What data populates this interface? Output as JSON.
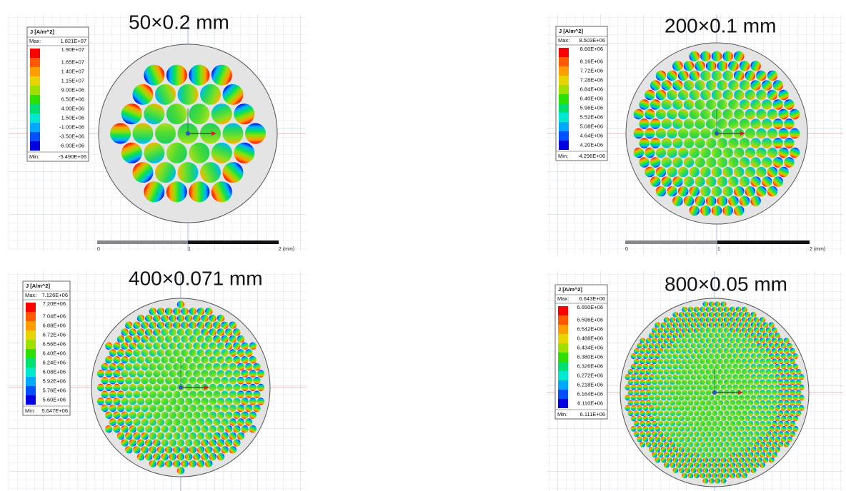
{
  "panels": [
    {
      "title": "50×0.2 mm",
      "legend": {
        "label": "J [A/m^2]",
        "max_label": "Max:",
        "max": "1.821E+07",
        "levels": [
          "1.90E+07",
          "1.65E+07",
          "1.40E+07",
          "1.15E+07",
          "9.00E+06",
          "6.50E+06",
          "4.00E+06",
          "1.50E+06",
          "-1.00E+06",
          "-3.50E+06",
          "-6.00E+06"
        ],
        "min_label": "Min:",
        "min": "-5.490E+06"
      },
      "scale_bar": [
        "0",
        "1",
        "2 (mm)"
      ]
    },
    {
      "title": "200×0.1 mm",
      "legend": {
        "label": "J [A/m^2]",
        "max_label": "Max:",
        "max": "8.503E+06",
        "levels": [
          "8.60E+06",
          "8.16E+06",
          "7.72E+06",
          "7.28E+06",
          "6.84E+06",
          "6.40E+06",
          "5.96E+06",
          "5.52E+06",
          "5.08E+06",
          "4.64E+06",
          "4.20E+06"
        ],
        "min_label": "Min:",
        "min": "4.296E+06"
      },
      "scale_bar": [
        "0",
        "1",
        "2 (mm)"
      ]
    },
    {
      "title": "400×0.071 mm",
      "legend": {
        "label": "J [A/m^2]",
        "max_label": "Max:",
        "max": "7.126E+06",
        "levels": [
          "7.20E+06",
          "7.04E+06",
          "6.88E+06",
          "6.72E+06",
          "6.56E+06",
          "6.40E+06",
          "6.24E+06",
          "6.08E+06",
          "5.92E+06",
          "5.76E+06",
          "5.60E+06"
        ],
        "min_label": "Min:",
        "min": "5.647E+06"
      }
    },
    {
      "title": "800×0.05 mm",
      "legend": {
        "label": "J [A/m^2]",
        "max_label": "Max:",
        "max": "6.643E+06",
        "levels": [
          "6.650E+06",
          "6.596E+06",
          "6.542E+06",
          "6.488E+06",
          "6.434E+06",
          "6.380E+06",
          "6.326E+06",
          "6.272E+06",
          "6.218E+06",
          "6.164E+06",
          "6.110E+06"
        ],
        "min_label": "Min:",
        "min": "6.111E+06"
      }
    }
  ]
}
